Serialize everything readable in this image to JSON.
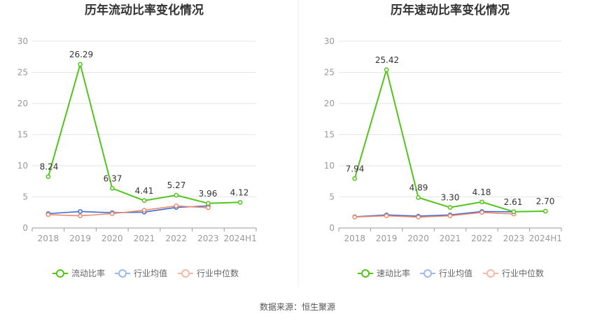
{
  "source": "数据来源：恒生聚源",
  "colors": {
    "primary": "#52C41A",
    "industry_avg": "#3E6BD8",
    "industry_median": "#F08A6A",
    "legend_avg": "#9CB8F0",
    "legend_median": "#F5B8A5",
    "grid": "#E6E6E6",
    "axis": "#999999"
  },
  "chart_data": [
    {
      "type": "line",
      "title": "历年流动比率变化情况",
      "categories": [
        "2018",
        "2019",
        "2020",
        "2021",
        "2022",
        "2023",
        "2024H1"
      ],
      "ylim": [
        0,
        30
      ],
      "yticks": [
        "0",
        "5",
        "10",
        "15",
        "20",
        "25",
        "30"
      ],
      "grid": true,
      "legend_position": "bottom",
      "series": [
        {
          "name": "流动比率",
          "values": [
            8.24,
            26.29,
            6.37,
            4.41,
            5.27,
            3.96,
            4.12
          ],
          "labels": [
            "8.24",
            "26.29",
            "6.37",
            "4.41",
            "5.27",
            "3.96",
            "4.12"
          ]
        },
        {
          "name": "行业均值",
          "values": [
            2.3,
            2.65,
            2.45,
            2.55,
            3.3,
            3.55,
            null
          ]
        },
        {
          "name": "行业中位数",
          "values": [
            2.15,
            1.95,
            2.3,
            2.85,
            3.55,
            3.25,
            null
          ]
        }
      ]
    },
    {
      "type": "line",
      "title": "历年速动比率变化情况",
      "categories": [
        "2018",
        "2019",
        "2020",
        "2021",
        "2022",
        "2023",
        "2024H1"
      ],
      "ylim": [
        0,
        30
      ],
      "yticks": [
        "0",
        "5",
        "10",
        "15",
        "20",
        "25",
        "30"
      ],
      "grid": true,
      "legend_position": "bottom",
      "series": [
        {
          "name": "速动比率",
          "values": [
            7.94,
            25.42,
            4.89,
            3.3,
            4.18,
            2.61,
            2.7
          ],
          "labels": [
            "7.94",
            "25.42",
            "4.89",
            "3.30",
            "4.18",
            "2.61",
            "2.70"
          ]
        },
        {
          "name": "行业均值",
          "values": [
            1.8,
            2.1,
            1.9,
            2.1,
            2.65,
            2.6,
            null
          ]
        },
        {
          "name": "行业中位数",
          "values": [
            1.75,
            1.95,
            1.75,
            1.95,
            2.5,
            2.25,
            null
          ]
        }
      ]
    }
  ]
}
